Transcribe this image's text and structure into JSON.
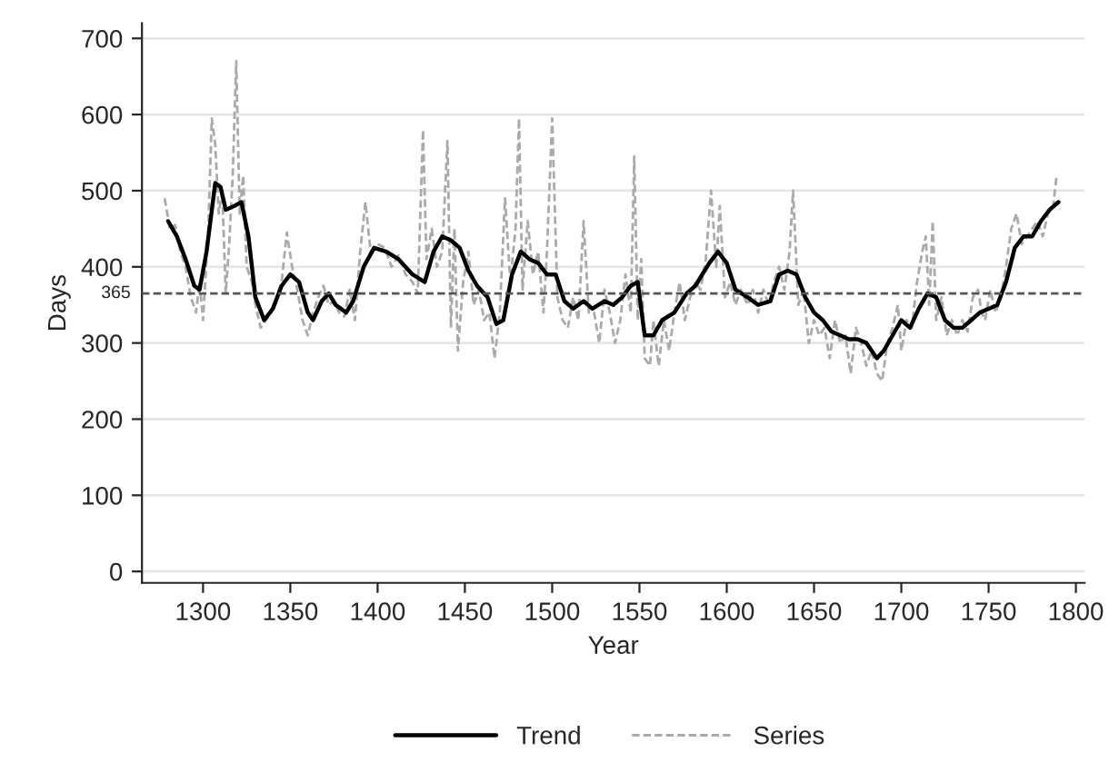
{
  "chart_data": {
    "type": "line",
    "xlabel": "Year",
    "ylabel": "Days",
    "xlim": [
      1265,
      1805
    ],
    "xticks": [
      1300,
      1350,
      1400,
      1450,
      1500,
      1550,
      1600,
      1650,
      1700,
      1750,
      1800
    ],
    "ylim": [
      -15,
      720
    ],
    "yticks": [
      0,
      100,
      200,
      300,
      400,
      500,
      600,
      700
    ],
    "grid": "y",
    "legend": "bottom",
    "ref_lines": [
      {
        "axis": "y",
        "value": 365,
        "label": "365",
        "color": "#555555",
        "line_style": "dashed"
      }
    ],
    "series": [
      {
        "name": "Trend",
        "color": "#000000",
        "line_style": "solid",
        "x": [
          1280,
          1285,
          1290,
          1295,
          1298,
          1302,
          1307,
          1310,
          1313,
          1318,
          1322,
          1326,
          1330,
          1335,
          1340,
          1345,
          1350,
          1355,
          1360,
          1363,
          1368,
          1372,
          1376,
          1382,
          1386,
          1392,
          1398,
          1405,
          1412,
          1420,
          1427,
          1432,
          1437,
          1442,
          1447,
          1452,
          1457,
          1463,
          1468,
          1472,
          1477,
          1482,
          1487,
          1492,
          1497,
          1502,
          1507,
          1512,
          1518,
          1523,
          1530,
          1535,
          1540,
          1545,
          1549,
          1553,
          1558,
          1563,
          1570,
          1577,
          1582,
          1590,
          1595,
          1600,
          1605,
          1612,
          1618,
          1625,
          1630,
          1635,
          1640,
          1645,
          1650,
          1655,
          1660,
          1665,
          1670,
          1675,
          1680,
          1686,
          1690,
          1695,
          1700,
          1705,
          1710,
          1715,
          1720,
          1725,
          1730,
          1735,
          1740,
          1745,
          1750,
          1755,
          1760,
          1765,
          1770,
          1775,
          1780,
          1785,
          1790
        ],
        "values": [
          460,
          440,
          410,
          375,
          370,
          420,
          510,
          505,
          475,
          480,
          485,
          440,
          360,
          330,
          345,
          375,
          390,
          380,
          340,
          330,
          355,
          365,
          350,
          340,
          355,
          400,
          425,
          420,
          410,
          390,
          380,
          420,
          440,
          435,
          425,
          395,
          375,
          360,
          325,
          330,
          390,
          420,
          410,
          405,
          390,
          390,
          355,
          345,
          355,
          345,
          355,
          350,
          360,
          375,
          380,
          310,
          310,
          330,
          340,
          365,
          375,
          405,
          420,
          405,
          370,
          360,
          350,
          355,
          390,
          395,
          390,
          360,
          340,
          330,
          315,
          310,
          305,
          305,
          300,
          280,
          290,
          310,
          330,
          320,
          345,
          365,
          360,
          330,
          320,
          320,
          330,
          340,
          345,
          350,
          380,
          425,
          440,
          440,
          460,
          475,
          485
        ]
      },
      {
        "name": "Series",
        "color": "#aaaaaa",
        "line_style": "dashed",
        "x": [
          1278,
          1281,
          1284,
          1287,
          1290,
          1293,
          1296,
          1298,
          1300,
          1303,
          1305,
          1307,
          1309,
          1311,
          1313,
          1315,
          1317,
          1319,
          1321,
          1323,
          1325,
          1328,
          1330,
          1333,
          1336,
          1339,
          1342,
          1345,
          1348,
          1351,
          1354,
          1357,
          1360,
          1363,
          1366,
          1369,
          1372,
          1375,
          1378,
          1381,
          1384,
          1387,
          1390,
          1393,
          1396,
          1400,
          1404,
          1408,
          1412,
          1416,
          1420,
          1423,
          1426,
          1428,
          1431,
          1434,
          1437,
          1440,
          1442,
          1444,
          1446,
          1449,
          1452,
          1455,
          1458,
          1461,
          1464,
          1467,
          1470,
          1473,
          1476,
          1479,
          1481,
          1483,
          1486,
          1489,
          1492,
          1495,
          1497,
          1500,
          1503,
          1506,
          1509,
          1512,
          1515,
          1518,
          1521,
          1524,
          1527,
          1530,
          1533,
          1536,
          1539,
          1542,
          1545,
          1547,
          1549,
          1551,
          1553,
          1556,
          1558,
          1561,
          1564,
          1567,
          1570,
          1573,
          1576,
          1579,
          1582,
          1585,
          1588,
          1591,
          1594,
          1596,
          1599,
          1602,
          1605,
          1608,
          1612,
          1615,
          1618,
          1621,
          1624,
          1627,
          1630,
          1633,
          1636,
          1638,
          1641,
          1644,
          1647,
          1650,
          1653,
          1656,
          1659,
          1662,
          1665,
          1668,
          1671,
          1674,
          1677,
          1680,
          1683,
          1686,
          1689,
          1692,
          1695,
          1698,
          1700,
          1703,
          1706,
          1709,
          1712,
          1714,
          1716,
          1718,
          1720,
          1723,
          1726,
          1729,
          1732,
          1735,
          1738,
          1741,
          1744,
          1746,
          1748,
          1751,
          1754,
          1757,
          1760,
          1763,
          1766,
          1769,
          1772,
          1775,
          1778,
          1781,
          1784,
          1787,
          1789
        ],
        "values": [
          490,
          450,
          455,
          420,
          400,
          360,
          340,
          380,
          330,
          450,
          595,
          560,
          470,
          500,
          365,
          430,
          520,
          670,
          470,
          520,
          400,
          380,
          350,
          320,
          330,
          340,
          360,
          380,
          445,
          400,
          370,
          330,
          310,
          340,
          360,
          375,
          350,
          355,
          340,
          335,
          370,
          330,
          420,
          485,
          420,
          430,
          425,
          400,
          415,
          390,
          380,
          365,
          580,
          410,
          450,
          400,
          420,
          565,
          320,
          450,
          290,
          380,
          420,
          350,
          370,
          330,
          340,
          280,
          340,
          490,
          380,
          450,
          595,
          370,
          460,
          390,
          420,
          340,
          420,
          595,
          360,
          330,
          320,
          360,
          330,
          460,
          340,
          340,
          300,
          370,
          340,
          300,
          330,
          390,
          340,
          545,
          330,
          410,
          280,
          270,
          330,
          270,
          330,
          290,
          340,
          380,
          330,
          360,
          380,
          370,
          410,
          500,
          400,
          480,
          360,
          380,
          350,
          370,
          350,
          370,
          340,
          370,
          350,
          380,
          400,
          370,
          420,
          500,
          350,
          370,
          300,
          330,
          310,
          320,
          280,
          330,
          300,
          310,
          260,
          320,
          300,
          270,
          290,
          260,
          250,
          300,
          320,
          350,
          290,
          330,
          320,
          380,
          420,
          440,
          350,
          460,
          330,
          360,
          310,
          330,
          310,
          330,
          315,
          360,
          370,
          340,
          330,
          370,
          340,
          360,
          400,
          450,
          470,
          430,
          440,
          450,
          460,
          440,
          470,
          480,
          520
        ]
      }
    ]
  }
}
